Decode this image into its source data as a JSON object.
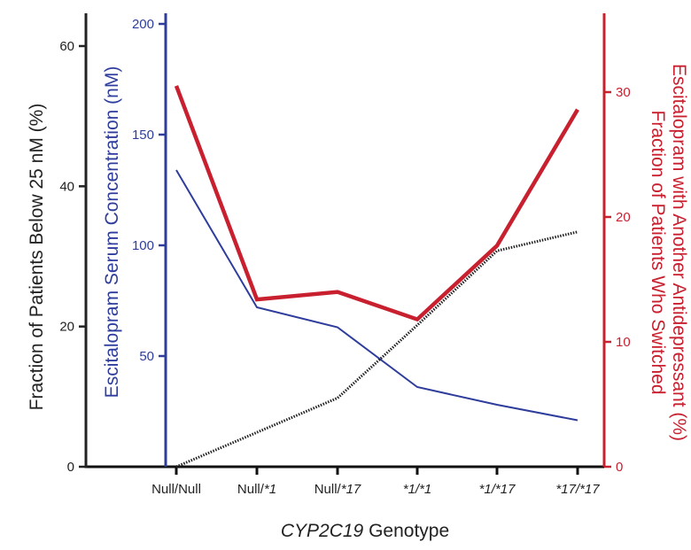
{
  "chart_data": {
    "type": "line",
    "categories": [
      "Null/Null",
      "Null/*1",
      "Null/*17",
      "*1/*1",
      "*1/*17",
      "*17/*17"
    ],
    "xlabel_italic": "CYP2C19",
    "xlabel_rest": " Genotype",
    "axes": {
      "left": {
        "label": "Fraction of Patients Below 25 nM (%)",
        "ylim": [
          0,
          65
        ],
        "ticks": [
          0,
          20,
          40,
          60
        ],
        "color": "#222222"
      },
      "blue": {
        "label": "Escitalopram Serum Concentration (nM)",
        "ylim": [
          0,
          200
        ],
        "ticks": [
          50,
          100,
          150,
          200
        ],
        "color": "#2e3d9c"
      },
      "right": {
        "label_line1": "Fraction of Patients Who Switched",
        "label_line2": "Escitalopram with Another Antidepressant (%)",
        "ylim": [
          0,
          36
        ],
        "ticks": [
          0,
          10,
          20,
          30
        ],
        "color": "#c8202f"
      }
    },
    "series": [
      {
        "axis": "blue",
        "style": "solid-thin",
        "color": "#2e3d9c",
        "values": [
          134,
          72,
          63,
          36,
          28,
          21
        ]
      },
      {
        "axis": "right",
        "style": "solid-thick",
        "color": "#c8202f",
        "values": [
          30.5,
          13.4,
          14.0,
          11.8,
          17.7,
          28.6
        ]
      },
      {
        "axis": "left",
        "style": "dotted",
        "color": "#222222",
        "values": [
          0,
          4.9,
          9.8,
          20.2,
          30.8,
          33.5
        ]
      }
    ],
    "grid": false
  }
}
